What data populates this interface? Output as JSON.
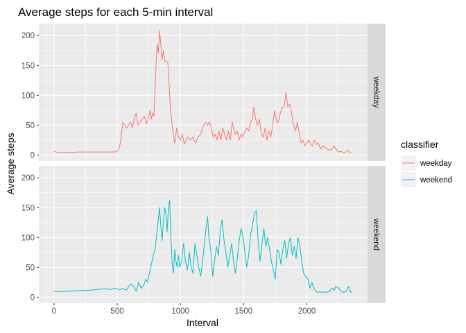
{
  "chart_data": {
    "type": "line",
    "title": "Average steps for each 5-min interval",
    "xlabel": "Interval",
    "ylabel": "Average steps",
    "xlim": [
      -120,
      2480
    ],
    "ylim": [
      -10,
      220
    ],
    "x_ticks": [
      0,
      500,
      1000,
      1500,
      2000
    ],
    "y_ticks": [
      0,
      50,
      100,
      150,
      200
    ],
    "grid": true,
    "facets": [
      "weekday",
      "weekend"
    ],
    "legend": {
      "title": "classifier",
      "placement": "right",
      "entries": [
        "weekday",
        "weekend"
      ]
    },
    "series": [
      {
        "name": "weekday",
        "color": "#F8766D",
        "points": [
          [
            0,
            6
          ],
          [
            30,
            4
          ],
          [
            100,
            4
          ],
          [
            200,
            5
          ],
          [
            300,
            5
          ],
          [
            400,
            5
          ],
          [
            480,
            5
          ],
          [
            505,
            7
          ],
          [
            520,
            15
          ],
          [
            540,
            45
          ],
          [
            545,
            55
          ],
          [
            560,
            50
          ],
          [
            575,
            45
          ],
          [
            590,
            50
          ],
          [
            605,
            55
          ],
          [
            620,
            45
          ],
          [
            635,
            60
          ],
          [
            650,
            70
          ],
          [
            665,
            50
          ],
          [
            680,
            55
          ],
          [
            700,
            60
          ],
          [
            715,
            65
          ],
          [
            730,
            52
          ],
          [
            745,
            60
          ],
          [
            760,
            75
          ],
          [
            770,
            60
          ],
          [
            780,
            70
          ],
          [
            790,
            65
          ],
          [
            805,
            140
          ],
          [
            815,
            185
          ],
          [
            825,
            170
          ],
          [
            835,
            208
          ],
          [
            845,
            185
          ],
          [
            855,
            160
          ],
          [
            865,
            175
          ],
          [
            875,
            158
          ],
          [
            900,
            155
          ],
          [
            910,
            120
          ],
          [
            920,
            80
          ],
          [
            930,
            60
          ],
          [
            940,
            40
          ],
          [
            955,
            20
          ],
          [
            970,
            45
          ],
          [
            985,
            30
          ],
          [
            1000,
            25
          ],
          [
            1015,
            35
          ],
          [
            1030,
            18
          ],
          [
            1045,
            25
          ],
          [
            1060,
            30
          ],
          [
            1080,
            25
          ],
          [
            1100,
            30
          ],
          [
            1120,
            20
          ],
          [
            1140,
            30
          ],
          [
            1160,
            35
          ],
          [
            1175,
            45
          ],
          [
            1185,
            50
          ],
          [
            1200,
            55
          ],
          [
            1215,
            50
          ],
          [
            1230,
            55
          ],
          [
            1245,
            45
          ],
          [
            1260,
            30
          ],
          [
            1275,
            35
          ],
          [
            1290,
            25
          ],
          [
            1305,
            40
          ],
          [
            1320,
            25
          ],
          [
            1335,
            45
          ],
          [
            1350,
            35
          ],
          [
            1365,
            25
          ],
          [
            1380,
            40
          ],
          [
            1395,
            25
          ],
          [
            1410,
            55
          ],
          [
            1420,
            45
          ],
          [
            1435,
            35
          ],
          [
            1450,
            40
          ],
          [
            1465,
            25
          ],
          [
            1480,
            35
          ],
          [
            1495,
            30
          ],
          [
            1510,
            40
          ],
          [
            1525,
            45
          ],
          [
            1540,
            40
          ],
          [
            1555,
            55
          ],
          [
            1570,
            60
          ],
          [
            1580,
            80
          ],
          [
            1595,
            60
          ],
          [
            1610,
            50
          ],
          [
            1625,
            60
          ],
          [
            1640,
            35
          ],
          [
            1655,
            30
          ],
          [
            1670,
            45
          ],
          [
            1685,
            25
          ],
          [
            1700,
            40
          ],
          [
            1715,
            30
          ],
          [
            1730,
            50
          ],
          [
            1745,
            75
          ],
          [
            1760,
            55
          ],
          [
            1775,
            55
          ],
          [
            1790,
            70
          ],
          [
            1805,
            80
          ],
          [
            1820,
            80
          ],
          [
            1835,
            105
          ],
          [
            1850,
            80
          ],
          [
            1865,
            85
          ],
          [
            1880,
            70
          ],
          [
            1895,
            50
          ],
          [
            1910,
            40
          ],
          [
            1925,
            55
          ],
          [
            1940,
            35
          ],
          [
            1955,
            20
          ],
          [
            1970,
            25
          ],
          [
            1985,
            15
          ],
          [
            2000,
            20
          ],
          [
            2015,
            25
          ],
          [
            2030,
            18
          ],
          [
            2045,
            15
          ],
          [
            2060,
            25
          ],
          [
            2075,
            18
          ],
          [
            2090,
            20
          ],
          [
            2110,
            10
          ],
          [
            2125,
            15
          ],
          [
            2150,
            12
          ],
          [
            2175,
            8
          ],
          [
            2200,
            10
          ],
          [
            2215,
            15
          ],
          [
            2230,
            10
          ],
          [
            2250,
            5
          ],
          [
            2270,
            6
          ],
          [
            2290,
            4
          ],
          [
            2310,
            5
          ],
          [
            2325,
            8
          ],
          [
            2340,
            4
          ],
          [
            2355,
            3
          ]
        ]
      },
      {
        "name": "weekend",
        "color": "#00BFC4",
        "points": [
          [
            0,
            9
          ],
          [
            20,
            10
          ],
          [
            60,
            9
          ],
          [
            100,
            10
          ],
          [
            200,
            11
          ],
          [
            300,
            12
          ],
          [
            400,
            14
          ],
          [
            450,
            13
          ],
          [
            480,
            15
          ],
          [
            500,
            14
          ],
          [
            520,
            12
          ],
          [
            540,
            15
          ],
          [
            560,
            13
          ],
          [
            575,
            12
          ],
          [
            590,
            18
          ],
          [
            610,
            22
          ],
          [
            630,
            18
          ],
          [
            650,
            10
          ],
          [
            670,
            25
          ],
          [
            690,
            15
          ],
          [
            710,
            20
          ],
          [
            725,
            30
          ],
          [
            740,
            25
          ],
          [
            755,
            40
          ],
          [
            770,
            55
          ],
          [
            785,
            70
          ],
          [
            800,
            80
          ],
          [
            815,
            110
          ],
          [
            825,
            130
          ],
          [
            835,
            150
          ],
          [
            845,
            120
          ],
          [
            855,
            95
          ],
          [
            865,
            125
          ],
          [
            875,
            150
          ],
          [
            885,
            140
          ],
          [
            895,
            110
          ],
          [
            905,
            150
          ],
          [
            915,
            162
          ],
          [
            925,
            100
          ],
          [
            935,
            55
          ],
          [
            945,
            40
          ],
          [
            955,
            80
          ],
          [
            965,
            60
          ],
          [
            975,
            50
          ],
          [
            985,
            70
          ],
          [
            995,
            50
          ],
          [
            1010,
            60
          ],
          [
            1025,
            90
          ],
          [
            1040,
            60
          ],
          [
            1055,
            45
          ],
          [
            1070,
            75
          ],
          [
            1085,
            50
          ],
          [
            1100,
            40
          ],
          [
            1115,
            90
          ],
          [
            1130,
            70
          ],
          [
            1145,
            50
          ],
          [
            1160,
            35
          ],
          [
            1175,
            60
          ],
          [
            1190,
            90
          ],
          [
            1205,
            120
          ],
          [
            1215,
            135
          ],
          [
            1225,
            100
          ],
          [
            1240,
            80
          ],
          [
            1255,
            35
          ],
          [
            1270,
            60
          ],
          [
            1285,
            85
          ],
          [
            1300,
            70
          ],
          [
            1315,
            110
          ],
          [
            1330,
            130
          ],
          [
            1345,
            95
          ],
          [
            1360,
            75
          ],
          [
            1375,
            50
          ],
          [
            1390,
            70
          ],
          [
            1405,
            90
          ],
          [
            1420,
            60
          ],
          [
            1435,
            40
          ],
          [
            1450,
            65
          ],
          [
            1465,
            95
          ],
          [
            1480,
            115
          ],
          [
            1495,
            100
          ],
          [
            1510,
            75
          ],
          [
            1525,
            50
          ],
          [
            1540,
            70
          ],
          [
            1555,
            105
          ],
          [
            1570,
            120
          ],
          [
            1585,
            140
          ],
          [
            1600,
            145
          ],
          [
            1615,
            95
          ],
          [
            1630,
            60
          ],
          [
            1645,
            90
          ],
          [
            1660,
            115
          ],
          [
            1675,
            85
          ],
          [
            1690,
            100
          ],
          [
            1705,
            80
          ],
          [
            1720,
            60
          ],
          [
            1735,
            45
          ],
          [
            1750,
            30
          ],
          [
            1765,
            80
          ],
          [
            1780,
            75
          ],
          [
            1795,
            55
          ],
          [
            1810,
            80
          ],
          [
            1825,
            95
          ],
          [
            1840,
            65
          ],
          [
            1855,
            90
          ],
          [
            1870,
            100
          ],
          [
            1885,
            70
          ],
          [
            1900,
            85
          ],
          [
            1915,
            65
          ],
          [
            1930,
            100
          ],
          [
            1945,
            85
          ],
          [
            1960,
            60
          ],
          [
            1975,
            40
          ],
          [
            1990,
            35
          ],
          [
            2010,
            30
          ],
          [
            2025,
            15
          ],
          [
            2040,
            25
          ],
          [
            2055,
            15
          ],
          [
            2070,
            10
          ],
          [
            2085,
            8
          ],
          [
            2100,
            9
          ],
          [
            2120,
            8
          ],
          [
            2140,
            9
          ],
          [
            2160,
            8
          ],
          [
            2180,
            10
          ],
          [
            2200,
            15
          ],
          [
            2215,
            12
          ],
          [
            2230,
            18
          ],
          [
            2250,
            15
          ],
          [
            2270,
            10
          ],
          [
            2290,
            8
          ],
          [
            2310,
            10
          ],
          [
            2330,
            18
          ],
          [
            2345,
            8
          ],
          [
            2355,
            10
          ]
        ]
      }
    ]
  }
}
